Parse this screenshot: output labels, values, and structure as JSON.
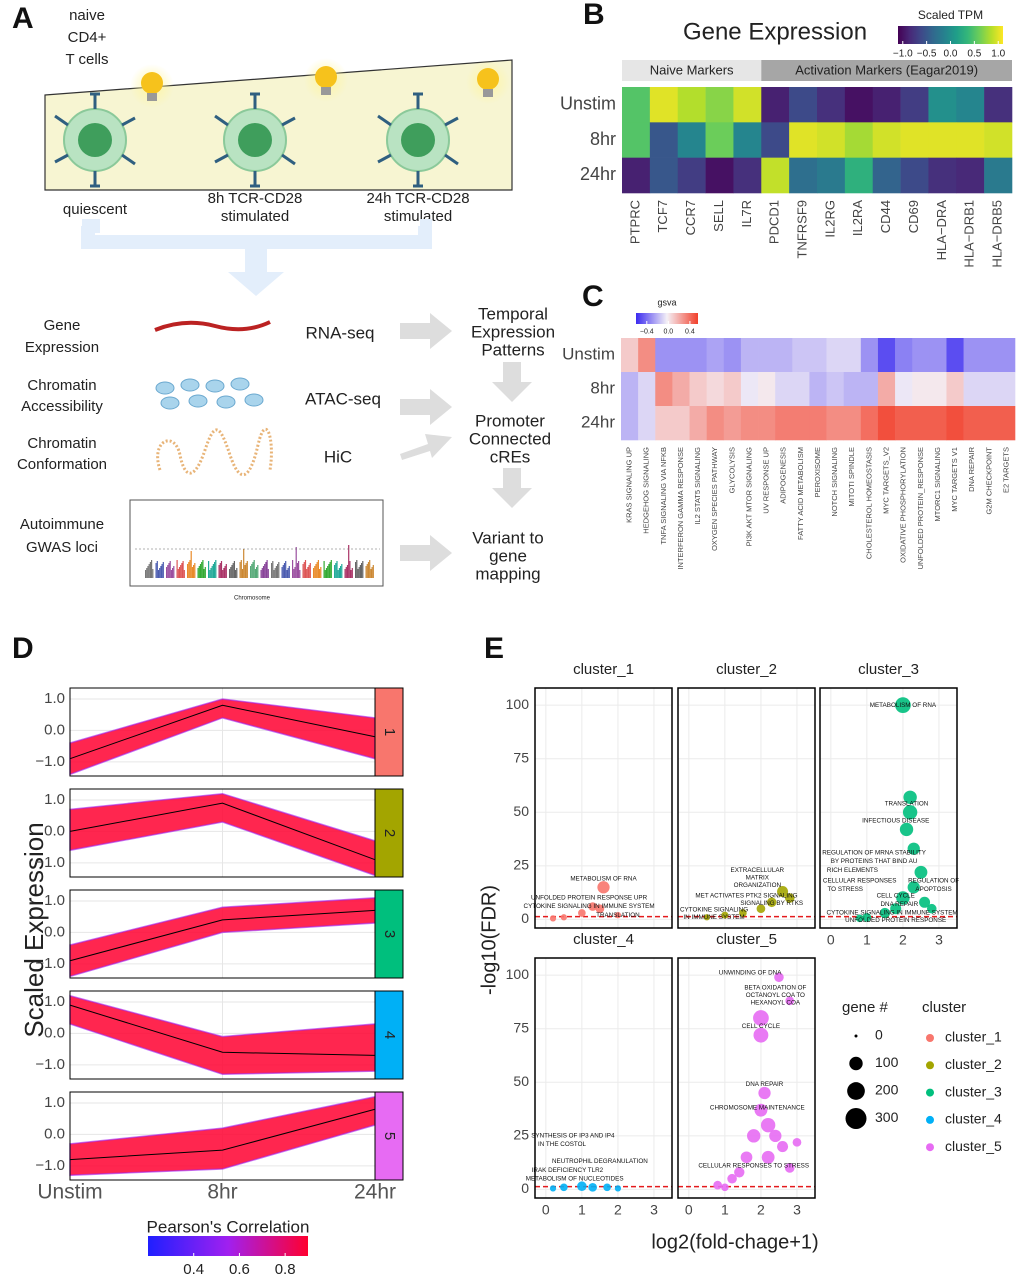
{
  "panel_labels": [
    "A",
    "B",
    "C",
    "D",
    "E"
  ],
  "diagram": {
    "cell_label": [
      "naive",
      "CD4+",
      "T cells"
    ],
    "states": [
      [
        "quiescent"
      ],
      [
        "8h TCR-CD28",
        "stimulated"
      ],
      [
        "24h TCR-CD28",
        "stimulated"
      ]
    ],
    "inputs": [
      {
        "name": [
          "Gene",
          "Expression"
        ],
        "assay": "RNA-seq"
      },
      {
        "name": [
          "Chromatin",
          "Accessibility"
        ],
        "assay": "ATAC-seq"
      },
      {
        "name": [
          "Chromatin",
          "Conformation"
        ],
        "assay": "HiC"
      },
      {
        "name": [
          "Autoimmune",
          "GWAS loci"
        ]
      }
    ],
    "manhattan_xlabel": "Chromosome",
    "outputs": [
      [
        "Temporal",
        "Expression",
        "Patterns"
      ],
      [
        "Promoter",
        "Connected",
        "cREs"
      ],
      [
        "Variant to",
        "gene",
        "mapping"
      ]
    ]
  },
  "chart_data": [
    {
      "type": "heatmap",
      "title": "Gene Expression",
      "rows": [
        "Unstim",
        "8hr",
        "24hr"
      ],
      "groups": [
        {
          "name": "Naive Markers",
          "color": "#e6e6e6",
          "columns": [
            "PTPRC",
            "TCF7",
            "CCR7",
            "SELL",
            "IL7R"
          ]
        },
        {
          "name": "Activation Markers (Eagar2019)",
          "color": "#a6a6a6",
          "columns": [
            "PDCD1",
            "TNFRSF9",
            "IL2RG",
            "IL2RA",
            "CD44",
            "CD69",
            "HLA−DRA",
            "HLA−DRB1",
            "HLA−DRB5"
          ]
        }
      ],
      "values": [
        [
          0.5,
          1.0,
          0.85,
          0.7,
          0.95,
          -0.9,
          -0.6,
          -0.8,
          -1.0,
          -0.9,
          -0.7,
          0.0,
          -0.1,
          -0.8
        ],
        [
          0.5,
          -0.5,
          -0.1,
          0.6,
          -0.1,
          -0.6,
          1.0,
          0.95,
          0.8,
          0.95,
          1.0,
          1.0,
          1.0,
          0.95
        ],
        [
          -0.9,
          -0.5,
          -0.7,
          -1.0,
          -0.8,
          0.9,
          -0.3,
          -0.2,
          0.3,
          -0.4,
          -0.6,
          -0.8,
          -0.85,
          -0.2
        ]
      ],
      "colorbar": {
        "title": "Scaled TPM",
        "clim": [
          -1.1,
          1.1
        ],
        "ticks": [
          {
            "value": -1,
            "label": "−1.0"
          },
          {
            "value": -0.5,
            "label": "−0.5"
          },
          {
            "value": 0,
            "label": "0.0"
          },
          {
            "value": 0.5,
            "label": "0.5"
          },
          {
            "value": 1,
            "label": "1.0"
          }
        ],
        "colors": [
          "#440154",
          "#482878",
          "#3e4989",
          "#31688e",
          "#26828e",
          "#1f9e89",
          "#35b779",
          "#6ece58",
          "#b5de2b",
          "#fde725"
        ]
      }
    },
    {
      "type": "heatmap",
      "rows": [
        "Unstim",
        "8hr",
        "24hr"
      ],
      "columns": [
        "KRAS SIGNALING UP",
        "HEDGEHOG SIGNALING",
        "TNFA SIGNALING VIA NFKB",
        "INTERFERON GAMMA RESPONSE",
        "IL2 STAT5 SIGNALING",
        "OXYGEN SPECIES PATHWAY",
        "GLYCOLYSIS",
        "PI3K AKT MTOR SIGNALING",
        "UV RESPONSE UP",
        "ADIPOGENESIS",
        "FATTY ACID METABOLISM",
        "PEROXISOME",
        "NOTCH SIGNALING",
        "MITOTI SPINDLE",
        "CHOLESTEROL HOMEOSTASIS",
        "MYC TARGETS_V2",
        "OXIDATIVE PHOSPHORYLATION",
        "UNFOLDED PROTEIN_RESPONSE",
        "MTORC1 SIGNALING",
        "MYC TARGETS V1",
        "DNA REPAIR",
        "G2M CHECKPOINT",
        "E2 TARGETS"
      ],
      "values": [
        [
          0.1,
          0.3,
          -0.3,
          -0.3,
          -0.3,
          -0.25,
          -0.3,
          -0.2,
          -0.2,
          -0.2,
          -0.15,
          -0.15,
          -0.1,
          -0.1,
          -0.3,
          -0.5,
          -0.35,
          -0.3,
          -0.3,
          -0.5,
          -0.3,
          -0.3,
          -0.3
        ],
        [
          -0.2,
          -0.1,
          0.3,
          0.2,
          0.1,
          0.05,
          0.1,
          -0.05,
          0.0,
          -0.1,
          -0.1,
          -0.2,
          -0.15,
          -0.2,
          -0.2,
          0.2,
          -0.05,
          0.0,
          0.0,
          0.1,
          -0.1,
          -0.1,
          -0.1
        ],
        [
          -0.2,
          -0.1,
          0.1,
          0.1,
          0.2,
          0.3,
          0.25,
          0.3,
          0.3,
          0.35,
          0.35,
          0.35,
          0.3,
          0.3,
          0.4,
          0.5,
          0.45,
          0.45,
          0.45,
          0.5,
          0.45,
          0.45,
          0.45
        ]
      ],
      "colorbar": {
        "title": "gsva",
        "clim": [
          -0.6,
          0.55
        ],
        "ticks": [
          {
            "value": -0.4,
            "label": "−0.4"
          },
          {
            "value": 0,
            "label": "0.0"
          },
          0.4
        ],
        "colors": [
          "#3b2bf0",
          "#f4f0f6",
          "#f2402b"
        ]
      }
    },
    {
      "type": "line",
      "categories": [
        "Unstim",
        "8hr",
        "24hr"
      ],
      "ylabel": "Scaled Expression",
      "ylim": [
        -1.45,
        1.35
      ],
      "yticks": [
        {
          "value": 1,
          "label": "1.0"
        },
        {
          "value": 0,
          "label": "0.0"
        },
        {
          "value": -1,
          "label": "−1.0"
        }
      ],
      "panels": [
        {
          "label": "1",
          "color": "#F8766D",
          "mean": [
            -0.9,
            0.8,
            -0.2
          ],
          "lower": [
            -1.4,
            0.4,
            -0.9
          ],
          "upper": [
            -0.4,
            1.0,
            0.4
          ]
        },
        {
          "label": "2",
          "color": "#A3A500",
          "mean": [
            0.0,
            0.9,
            -0.9
          ],
          "lower": [
            -0.6,
            0.3,
            -1.4
          ],
          "upper": [
            0.7,
            1.2,
            -0.3
          ]
        },
        {
          "label": "3",
          "color": "#00BF7D",
          "mean": [
            -0.9,
            0.4,
            0.7
          ],
          "lower": [
            -1.4,
            0.0,
            0.3
          ],
          "upper": [
            -0.4,
            0.8,
            1.1
          ]
        },
        {
          "label": "4",
          "color": "#00B0F6",
          "mean": [
            0.9,
            -0.6,
            -0.7
          ],
          "lower": [
            0.3,
            -1.3,
            -1.2
          ],
          "upper": [
            1.2,
            -0.1,
            0.3
          ]
        },
        {
          "label": "5",
          "color": "#E76BF3",
          "mean": [
            -0.8,
            -0.5,
            0.8
          ],
          "lower": [
            -1.3,
            -1.1,
            0.3
          ],
          "upper": [
            -0.3,
            0.2,
            1.2
          ]
        }
      ],
      "colorbar": {
        "title": "Pearson's Correlation",
        "clim": [
          0.2,
          0.9
        ],
        "ticks": [
          0.4,
          0.6,
          0.8
        ],
        "colors": [
          "#1f1fff",
          "#a020f0",
          "#ff0030"
        ]
      }
    },
    {
      "type": "scatter",
      "xlabel": "log2(fold-chage+1)",
      "ylabel": "-log10(FDR)",
      "xlim": [
        -0.3,
        3.5
      ],
      "ylim": [
        -4,
        108
      ],
      "xticks": [
        0,
        1,
        2,
        3
      ],
      "yticks": [
        0,
        25,
        50,
        75,
        100
      ],
      "threshold": 1.3,
      "threshold_color": "#e41a1c",
      "size_legend": {
        "title": "gene #",
        "values": [
          0,
          100,
          200,
          300
        ]
      },
      "legend_title": "cluster",
      "series": [
        {
          "name": "cluster_1",
          "color": "#F8766D",
          "x": [
            1.6,
            1.3,
            1.0,
            0.5,
            0.2,
            1.5,
            2.0
          ],
          "y": [
            15,
            6,
            3,
            1,
            0.5,
            5,
            2
          ],
          "size": [
            80,
            30,
            20,
            10,
            10,
            30,
            10
          ],
          "labels": [
            {
              "text": "METABOLISM OF RNA",
              "x": 1.6,
              "y": 19
            },
            {
              "text": "UNFOLDED PROTEIN RESPONSE UPR",
              "x": 1.2,
              "y": 10
            },
            {
              "text": "CYTOKINE SIGNALING IN IMMUNE SYSTEM",
              "x": 1.2,
              "y": 6
            },
            {
              "text": "TRANSLATION",
              "x": 2.0,
              "y": 2
            }
          ]
        },
        {
          "name": "cluster_2",
          "color": "#A3A500",
          "x": [
            2.6,
            2.3,
            2.0,
            1.5,
            1.0,
            0.5,
            2.8
          ],
          "y": [
            13,
            8,
            5,
            3,
            2,
            1,
            10
          ],
          "size": [
            60,
            40,
            30,
            20,
            15,
            10,
            40
          ],
          "labels": [
            {
              "text": "EXTRACELLULAR",
              "x": 1.9,
              "y": 23
            },
            {
              "text": "MATRIX",
              "x": 1.9,
              "y": 19.5
            },
            {
              "text": "ORGANIZATION",
              "x": 1.9,
              "y": 16
            },
            {
              "text": "MET ACTIVATES PTK2 SIGNALING",
              "x": 1.6,
              "y": 11
            },
            {
              "text": "SIGNALING BY RTKS",
              "x": 2.3,
              "y": 7.5
            },
            {
              "text": "CYTOKINE SIGNALING",
              "x": 0.7,
              "y": 4.5
            },
            {
              "text": "IN IMMUNE SYSTEM",
              "x": 0.7,
              "y": 1
            }
          ]
        },
        {
          "name": "cluster_3",
          "color": "#00BF7D",
          "x": [
            2.0,
            2.2,
            2.2,
            2.1,
            2.3,
            2.5,
            2.3,
            2.0,
            1.8,
            1.5,
            1.0,
            0.8,
            2.6,
            2.8
          ],
          "y": [
            100,
            57,
            50,
            42,
            33,
            22,
            15,
            10,
            5,
            3,
            1,
            0.5,
            8,
            5
          ],
          "size": [
            150,
            100,
            120,
            100,
            80,
            90,
            80,
            100,
            60,
            50,
            30,
            20,
            60,
            40
          ],
          "labels": [
            {
              "text": "METABOLISM OF RNA",
              "x": 2.0,
              "y": 100
            },
            {
              "text": "TRANSLATION",
              "x": 2.1,
              "y": 54
            },
            {
              "text": "INFECTIOUS DISEASE",
              "x": 1.8,
              "y": 46
            },
            {
              "text": "REGULATION OF MRNA STABILITY",
              "x": 1.2,
              "y": 31
            },
            {
              "text": "BY PROTEINS THAT BIND AU",
              "x": 1.2,
              "y": 27
            },
            {
              "text": "RICH ELEMENTS",
              "x": 0.6,
              "y": 23
            },
            {
              "text": "CELLULAR RESPONSES",
              "x": 0.8,
              "y": 18
            },
            {
              "text": "TO STRESS",
              "x": 0.4,
              "y": 14
            },
            {
              "text": "REGULATION OF",
              "x": 2.85,
              "y": 18
            },
            {
              "text": "APOPTOSIS",
              "x": 2.85,
              "y": 14
            },
            {
              "text": "CELL CYCLE",
              "x": 1.8,
              "y": 11
            },
            {
              "text": "DNA REPAIR",
              "x": 1.9,
              "y": 7
            },
            {
              "text": "CYTOKINE SIGNALING IN IMMUNE SYSTEM",
              "x": 1.7,
              "y": 3
            },
            {
              "text": "UNFOLDED PROTEIN RESPONSE",
              "x": 1.8,
              "y": -0.5
            }
          ]
        },
        {
          "name": "cluster_4",
          "color": "#00B0F6",
          "x": [
            0.5,
            1.0,
            1.3,
            1.7,
            2.0,
            0.2
          ],
          "y": [
            1,
            1.5,
            1,
            1,
            0.5,
            0.5
          ],
          "size": [
            20,
            40,
            30,
            20,
            10,
            10
          ],
          "labels": [
            {
              "text": "SYNTHESIS OF IP3 AND IP4",
              "x": 0.75,
              "y": 25
            },
            {
              "text": "IN THE COSTOL",
              "x": 0.45,
              "y": 21
            },
            {
              "text": "NEUTROPHIL DEGRANULATION",
              "x": 1.5,
              "y": 13
            },
            {
              "text": "IRAK DEFICIENCY TLR2",
              "x": 0.6,
              "y": 9
            },
            {
              "text": "METABOLISM OF NUCLEOTIDES",
              "x": 0.8,
              "y": 5
            }
          ]
        },
        {
          "name": "cluster_5",
          "color": "#E76BF3",
          "x": [
            2.5,
            2.8,
            2.0,
            2.0,
            2.1,
            2.0,
            2.2,
            1.8,
            2.4,
            2.6,
            1.6,
            2.2,
            1.4,
            1.2,
            0.8,
            2.8,
            3.0,
            1.0
          ],
          "y": [
            99,
            88,
            80,
            72,
            45,
            37,
            30,
            25,
            25,
            20,
            15,
            15,
            8,
            5,
            2,
            10,
            22,
            1
          ],
          "size": [
            40,
            30,
            150,
            130,
            80,
            90,
            120,
            100,
            80,
            60,
            70,
            90,
            50,
            40,
            30,
            40,
            30,
            20
          ],
          "labels": [
            {
              "text": "UNWINDING OF DNA",
              "x": 1.7,
              "y": 101
            },
            {
              "text": "BETA OXIDATION OF",
              "x": 2.4,
              "y": 94
            },
            {
              "text": "OCTANOYL COA TO",
              "x": 2.4,
              "y": 90.5
            },
            {
              "text": "HEXANOYL COA",
              "x": 2.4,
              "y": 87
            },
            {
              "text": "CELL CYCLE",
              "x": 2.0,
              "y": 76
            },
            {
              "text": "DNA REPAIR",
              "x": 2.1,
              "y": 49
            },
            {
              "text": "CHROMOSOME MAINTENANCE",
              "x": 1.9,
              "y": 38
            },
            {
              "text": "CELLULAR RESPONSES TO STRESS",
              "x": 1.8,
              "y": 11
            }
          ]
        }
      ]
    }
  ]
}
